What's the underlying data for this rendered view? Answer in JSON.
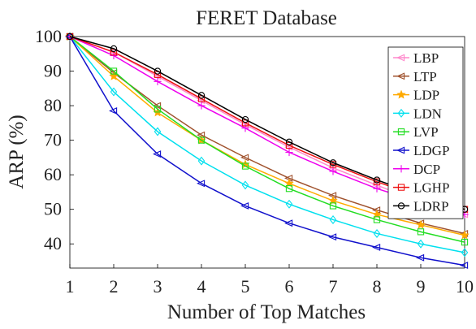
{
  "chart_data": {
    "type": "line",
    "title": "FERET Database",
    "xlabel": "Number of Top Matches",
    "ylabel": "ARP (%)",
    "x": [
      1,
      2,
      3,
      4,
      5,
      6,
      7,
      8,
      9,
      10
    ],
    "xlim": [
      1,
      10
    ],
    "ylim": [
      33,
      100
    ],
    "xticks": [
      "1",
      "2",
      "3",
      "4",
      "5",
      "6",
      "7",
      "8",
      "9",
      "10"
    ],
    "yticks": [
      "40",
      "50",
      "60",
      "70",
      "80",
      "90",
      "100"
    ],
    "ytick_values": [
      40,
      50,
      60,
      70,
      80,
      90,
      100
    ],
    "grid": false,
    "legend_position": "right",
    "series": [
      {
        "name": "LBP",
        "color": "#ff88cc",
        "marker": "triangle-left",
        "values": [
          100,
          95.5,
          88.5,
          81.5,
          74.5,
          68.0,
          62.0,
          57.0,
          52.0,
          48.5
        ]
      },
      {
        "name": "LTP",
        "color": "#a0522d",
        "marker": "triangle-left",
        "values": [
          100,
          89.5,
          80.0,
          71.5,
          65.0,
          59.0,
          54.0,
          49.8,
          46.0,
          43.0
        ]
      },
      {
        "name": "LDP",
        "color": "#ffaa00",
        "marker": "star",
        "values": [
          100,
          88.5,
          78.0,
          70.0,
          63.0,
          57.5,
          52.5,
          48.5,
          45.5,
          42.5
        ]
      },
      {
        "name": "LDN",
        "color": "#00e0ee",
        "marker": "diamond",
        "values": [
          100,
          84.0,
          72.5,
          64.0,
          57.0,
          51.5,
          47.0,
          43.0,
          40.0,
          37.5
        ]
      },
      {
        "name": "LVP",
        "color": "#22dd22",
        "marker": "square",
        "values": [
          100,
          90.0,
          79.0,
          70.0,
          62.5,
          56.0,
          51.0,
          47.0,
          43.5,
          40.5
        ]
      },
      {
        "name": "LDGP",
        "color": "#1111cc",
        "marker": "triangle-left",
        "values": [
          100,
          78.5,
          66.0,
          57.5,
          51.0,
          46.0,
          42.0,
          39.0,
          36.0,
          33.8
        ]
      },
      {
        "name": "DCP",
        "color": "#ee00ee",
        "marker": "plus",
        "values": [
          100,
          94.5,
          87.0,
          80.0,
          73.5,
          66.5,
          61.0,
          56.0,
          52.0,
          48.5
        ]
      },
      {
        "name": "LGHP",
        "color": "#ee1111",
        "marker": "square",
        "values": [
          100,
          95.5,
          89.0,
          82.0,
          75.0,
          68.5,
          63.0,
          58.0,
          53.5,
          50.0
        ]
      },
      {
        "name": "LDRP",
        "color": "#000000",
        "marker": "circle",
        "values": [
          100,
          96.5,
          90.0,
          83.0,
          76.0,
          69.5,
          63.5,
          58.5,
          54.0,
          50.0
        ]
      }
    ]
  }
}
